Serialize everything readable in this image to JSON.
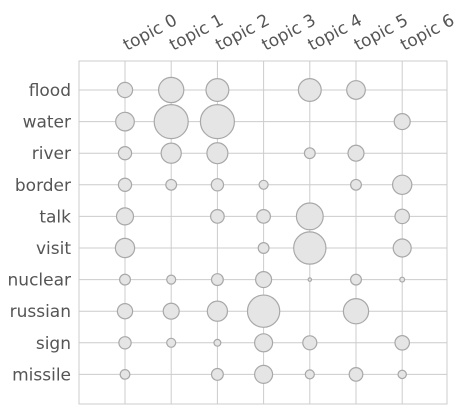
{
  "chart_data": {
    "type": "scatter",
    "kind": "bubble-matrix",
    "title": "",
    "xlabel": "",
    "ylabel": "",
    "grid": true,
    "x_categories": [
      "topic 0",
      "topic 1",
      "topic 2",
      "topic 3",
      "topic 4",
      "topic 5",
      "topic 6"
    ],
    "y_categories": [
      "flood",
      "water",
      "river",
      "border",
      "talk",
      "visit",
      "nuclear",
      "russian",
      "sign",
      "missile"
    ],
    "values": [
      [
        0.2,
        0.55,
        0.45,
        0.0,
        0.45,
        0.3,
        0.0
      ],
      [
        0.3,
        1.0,
        1.0,
        0.0,
        0.0,
        0.0,
        0.22
      ],
      [
        0.15,
        0.35,
        0.38,
        0.0,
        0.1,
        0.22,
        0.0
      ],
      [
        0.15,
        0.1,
        0.13,
        0.07,
        0.0,
        0.1,
        0.32
      ],
      [
        0.25,
        0.0,
        0.16,
        0.16,
        0.62,
        0.0,
        0.18
      ],
      [
        0.32,
        0.0,
        0.0,
        0.1,
        0.9,
        0.0,
        0.28
      ],
      [
        0.1,
        0.07,
        0.12,
        0.22,
        0.01,
        0.1,
        0.02
      ],
      [
        0.2,
        0.22,
        0.35,
        0.9,
        0.0,
        0.55,
        0.0
      ],
      [
        0.13,
        0.07,
        0.04,
        0.28,
        0.17,
        0.0,
        0.18
      ],
      [
        0.08,
        0.0,
        0.12,
        0.28,
        0.07,
        0.16,
        0.06
      ]
    ],
    "marker_fill": "#e5e5e5",
    "marker_stroke": "#a8a8a8",
    "grid_color": "#cccccc",
    "label_color": "#555555"
  }
}
